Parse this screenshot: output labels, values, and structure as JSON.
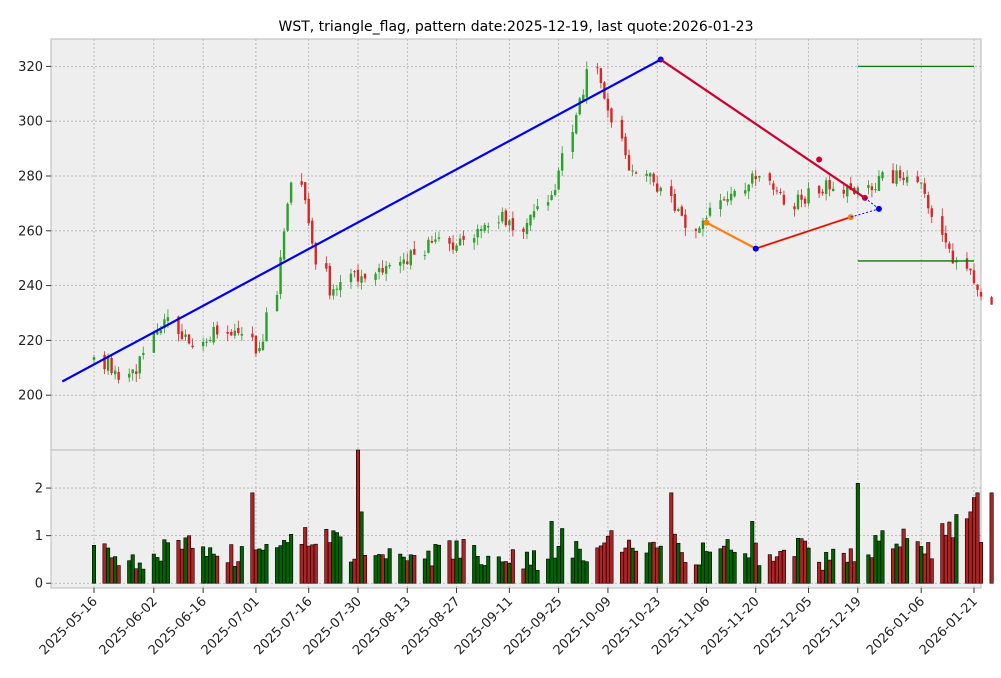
{
  "chart_data": {
    "type": "candlestick",
    "title": "WST, triangle_flag, pattern date:2025-12-19, last quote:2026-01-23",
    "x_tick_labels": [
      "2025-05-16",
      "2025-06-02",
      "2025-06-16",
      "2025-07-01",
      "2025-07-16",
      "2025-07-30",
      "2025-08-13",
      "2025-08-27",
      "2025-09-11",
      "2025-09-25",
      "2025-10-09",
      "2025-10-23",
      "2025-11-06",
      "2025-11-20",
      "2025-12-05",
      "2025-12-19",
      "2026-01-06",
      "2026-01-21"
    ],
    "price_axis": {
      "ylim": [
        180,
        330
      ],
      "ticks": [
        200,
        220,
        240,
        260,
        280,
        300,
        320
      ]
    },
    "volume_axis": {
      "ylim": [
        -0.1,
        2.8
      ],
      "ticks": [
        0,
        1,
        2
      ]
    },
    "grid": true,
    "colors": {
      "up": "#2ca02c",
      "down": "#d62728",
      "volume_up": "#006400",
      "volume_down": "#b22222",
      "trend_line": "#0000ee",
      "pattern_upper": "#cc0033",
      "pattern_lower": "#ff7f0e",
      "target_lines": "#008000",
      "plot_bg": "#eeeeee"
    },
    "anchor_closes": [
      213,
      206,
      228,
      218,
      225,
      215,
      280,
      238,
      244,
      246,
      254,
      256,
      265,
      262,
      280,
      322,
      285,
      276,
      258,
      271,
      282,
      270,
      276,
      275,
      280,
      275,
      248,
      236
    ],
    "volume_levels": [
      0.6,
      0.5,
      0.7,
      0.8,
      0.6,
      0.7,
      1.0,
      0.9,
      0.5,
      0.6,
      0.6,
      0.7,
      0.6,
      0.5,
      0.7,
      0.6,
      0.9,
      0.8,
      0.6,
      0.7,
      0.6,
      0.8,
      0.5,
      0.6,
      0.9,
      0.7,
      1.2,
      1.0
    ],
    "volume_spikes": {
      "2025-06-30": 1.9,
      "2025-07-27": 1.45,
      "2025-07-30": 2.8,
      "2025-07-31": 1.5,
      "2025-09-23": 1.3,
      "2025-09-26": 1.15,
      "2025-10-27": 1.9,
      "2025-11-19": 1.3,
      "2025-12-19": 2.1,
      "2026-01-20": 1.5,
      "2026-01-21": 1.8,
      "2026-01-22": 1.9,
      "2026-01-26": 1.9
    },
    "overlays": {
      "trend_line": [
        [
          "2025-05-07",
          205
        ],
        [
          "2025-10-24",
          322.5
        ]
      ],
      "pattern_upper": [
        [
          "2025-10-24",
          322.5
        ],
        [
          "2025-12-21",
          272
        ]
      ],
      "pattern_lower": [
        [
          "2025-11-06",
          263
        ],
        [
          "2025-11-20",
          253.5
        ],
        [
          "2025-12-17",
          265
        ]
      ],
      "pattern_upper_marker": [
        "2025-12-08",
        286
      ],
      "projection_upper": [
        [
          "2025-12-21",
          272
        ],
        [
          "2025-12-25",
          268
        ]
      ],
      "projection_lower": [
        [
          "2025-12-17",
          265
        ],
        [
          "2025-12-25",
          268
        ]
      ],
      "target_high": {
        "from": "2025-12-19",
        "to": "2026-01-21",
        "value": 320
      },
      "target_low": {
        "from": "2025-12-19",
        "to": "2026-01-21",
        "value": 249
      }
    }
  }
}
